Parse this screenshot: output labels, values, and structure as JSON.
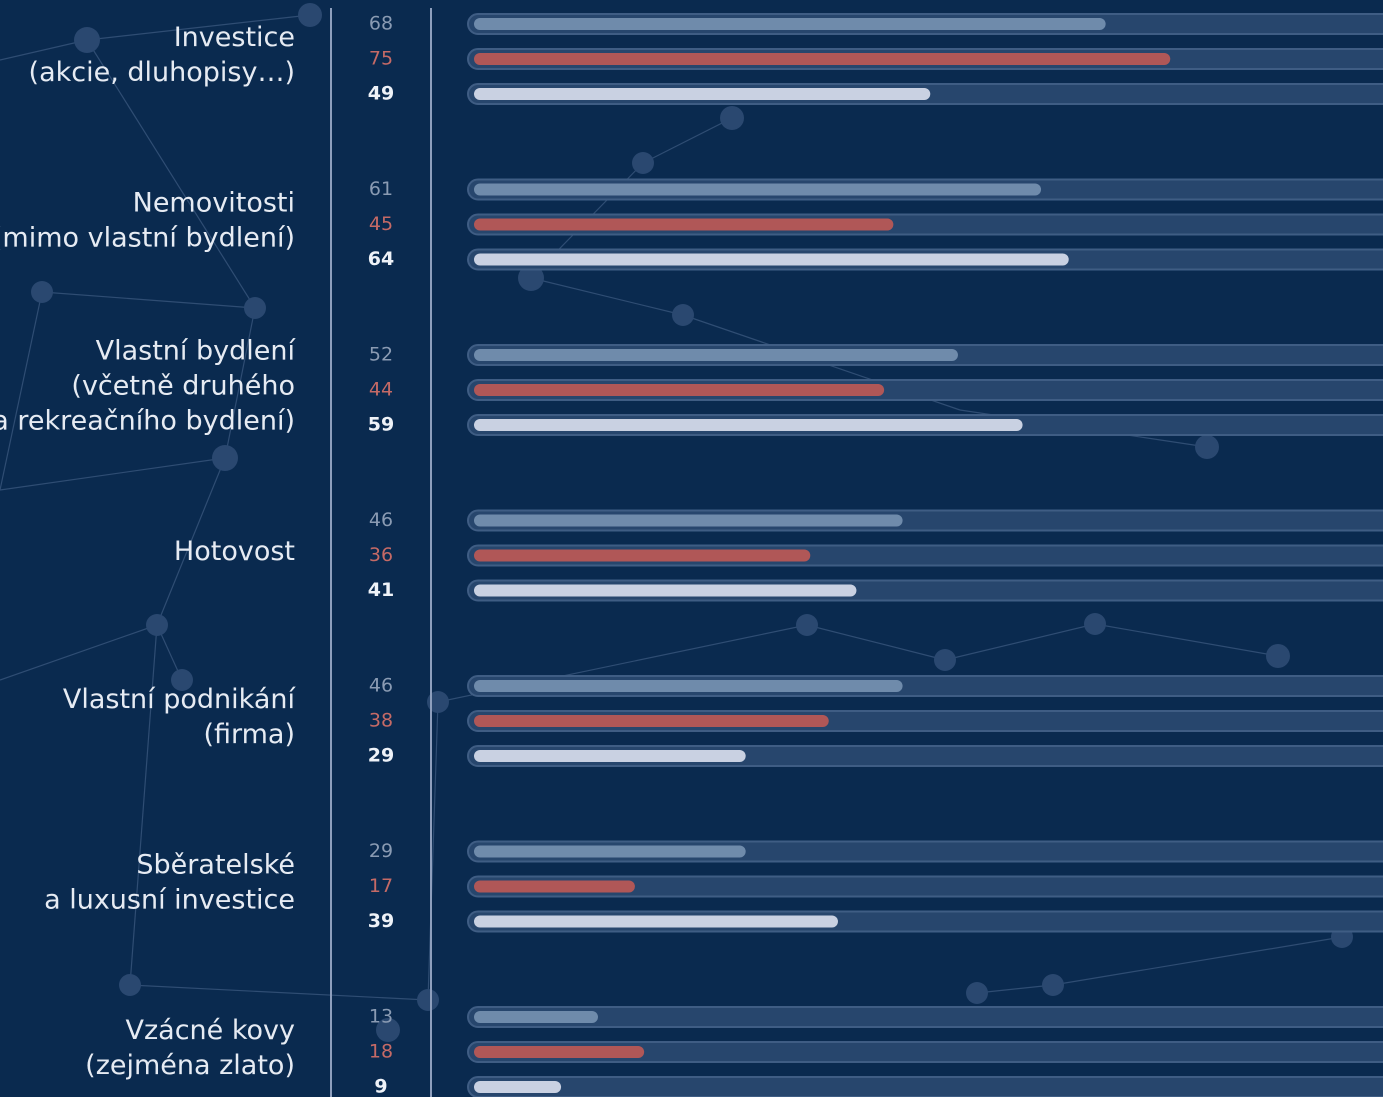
{
  "chart_data": {
    "type": "bar",
    "categories": [
      [
        "Investice",
        "(akcie, dluhopisy…)"
      ],
      [
        "Nemovitosti",
        "(mimo vlastní bydlení)"
      ],
      [
        "Vlastní bydlení",
        "(včetně druhého",
        "a rekreačního bydlení)"
      ],
      [
        "Hotovost"
      ],
      [
        "Vlastní podnikání",
        "(firma)"
      ],
      [
        "Sběratelské",
        "a luxusní investice"
      ],
      [
        "Vzácné kovy",
        "(zejména zlato)"
      ]
    ],
    "series": [
      {
        "color": "#6f8bab",
        "values": [
          68,
          61,
          52,
          46,
          46,
          29,
          13
        ]
      },
      {
        "color": "#b05757",
        "values": [
          75,
          45,
          44,
          36,
          38,
          17,
          18
        ]
      },
      {
        "color": "#c9d1e2",
        "values": [
          49,
          64,
          59,
          41,
          29,
          39,
          9
        ]
      }
    ],
    "xlim": [
      0,
      100
    ]
  }
}
